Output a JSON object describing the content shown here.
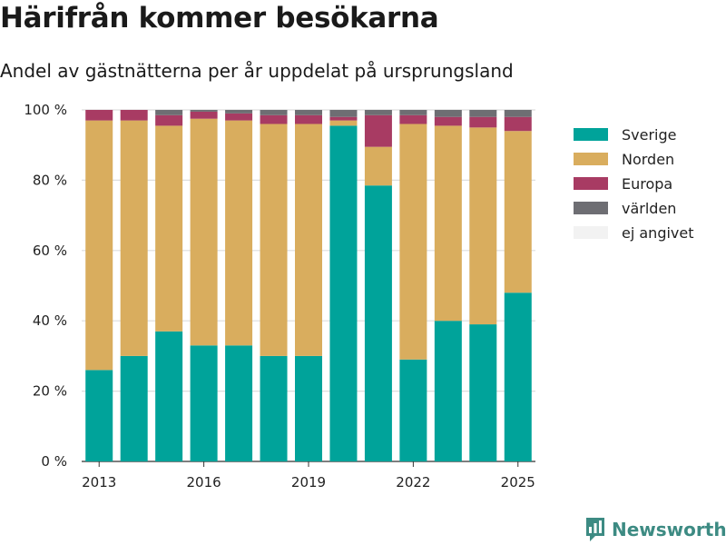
{
  "header": {
    "title": "Härifrån kommer besökarna",
    "subtitle": "Andel av gästnätterna per år uppdelat på ursprungsland"
  },
  "branding": {
    "name": "Newsworthy",
    "color": "#3d8b83"
  },
  "chart_data": {
    "type": "bar",
    "stacked": true,
    "categories": [
      2013,
      2014,
      2015,
      2016,
      2017,
      2018,
      2019,
      2020,
      2021,
      2022,
      2023,
      2024,
      2025
    ],
    "x_ticks": [
      "2013",
      "2016",
      "2019",
      "2022",
      "2025"
    ],
    "y_ticks": [
      "0 %",
      "20 %",
      "40 %",
      "60 %",
      "80 %",
      "100 %"
    ],
    "ylim": [
      0,
      100
    ],
    "grid": true,
    "legend_position": "right",
    "series": [
      {
        "name": "Sverige",
        "color": "#00a39a",
        "values": [
          26,
          30,
          37,
          33,
          33,
          30,
          30,
          95.5,
          78.5,
          29,
          40,
          39,
          48
        ]
      },
      {
        "name": "Norden",
        "color": "#d9ad5e",
        "values": [
          71,
          67,
          58.5,
          64.5,
          64,
          66,
          66,
          1.5,
          11,
          67,
          55.5,
          56,
          46
        ]
      },
      {
        "name": "Europa",
        "color": "#a83b63",
        "values": [
          3,
          3,
          3,
          2,
          2,
          2.5,
          2.5,
          1,
          9,
          2.5,
          2.5,
          3,
          4
        ]
      },
      {
        "name": "världen",
        "color": "#6e6e73",
        "values": [
          0,
          0,
          1.5,
          0.5,
          1,
          1.5,
          1.5,
          2,
          1.5,
          1.5,
          2,
          2,
          2
        ]
      },
      {
        "name": "ej angivet",
        "color": "#f2f2f2",
        "values": [
          0,
          0,
          0,
          0,
          0,
          0,
          0,
          0,
          0,
          0,
          0,
          0,
          0
        ]
      }
    ]
  }
}
